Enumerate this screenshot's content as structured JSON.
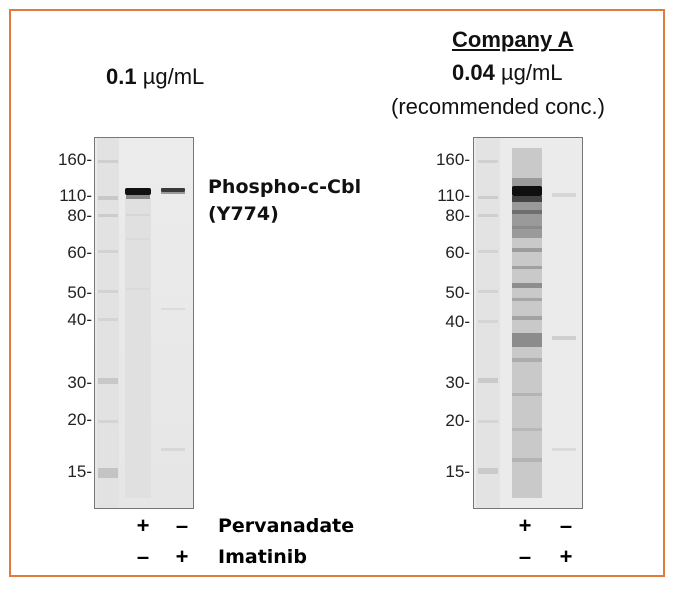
{
  "left_panel": {
    "conc_value": "0.1",
    "conc_unit": " µg/mL",
    "mw_markers": [
      "160-",
      "110-",
      "80-",
      "60-",
      "50-",
      "40-",
      "30-",
      "20-",
      "15-"
    ]
  },
  "right_panel": {
    "company": "Company A",
    "conc_value": "0.04",
    "conc_unit": " µg/mL",
    "note": "(recommended conc.)",
    "mw_markers": [
      "160-",
      "110-",
      "80-",
      "60-",
      "50-",
      "40-",
      "30-",
      "20-",
      "15-"
    ]
  },
  "protein_label": {
    "line1": "Phospho-c-Cbl",
    "line2": "(Y774)"
  },
  "treatments": {
    "pervanadate": "Pervanadate",
    "imatinib": "Imatinib",
    "lane1_pervanadate": "+",
    "lane2_pervanadate": "–",
    "lane1_imatinib": "–",
    "lane2_imatinib": "+"
  },
  "colors": {
    "border": "#E07B39"
  }
}
